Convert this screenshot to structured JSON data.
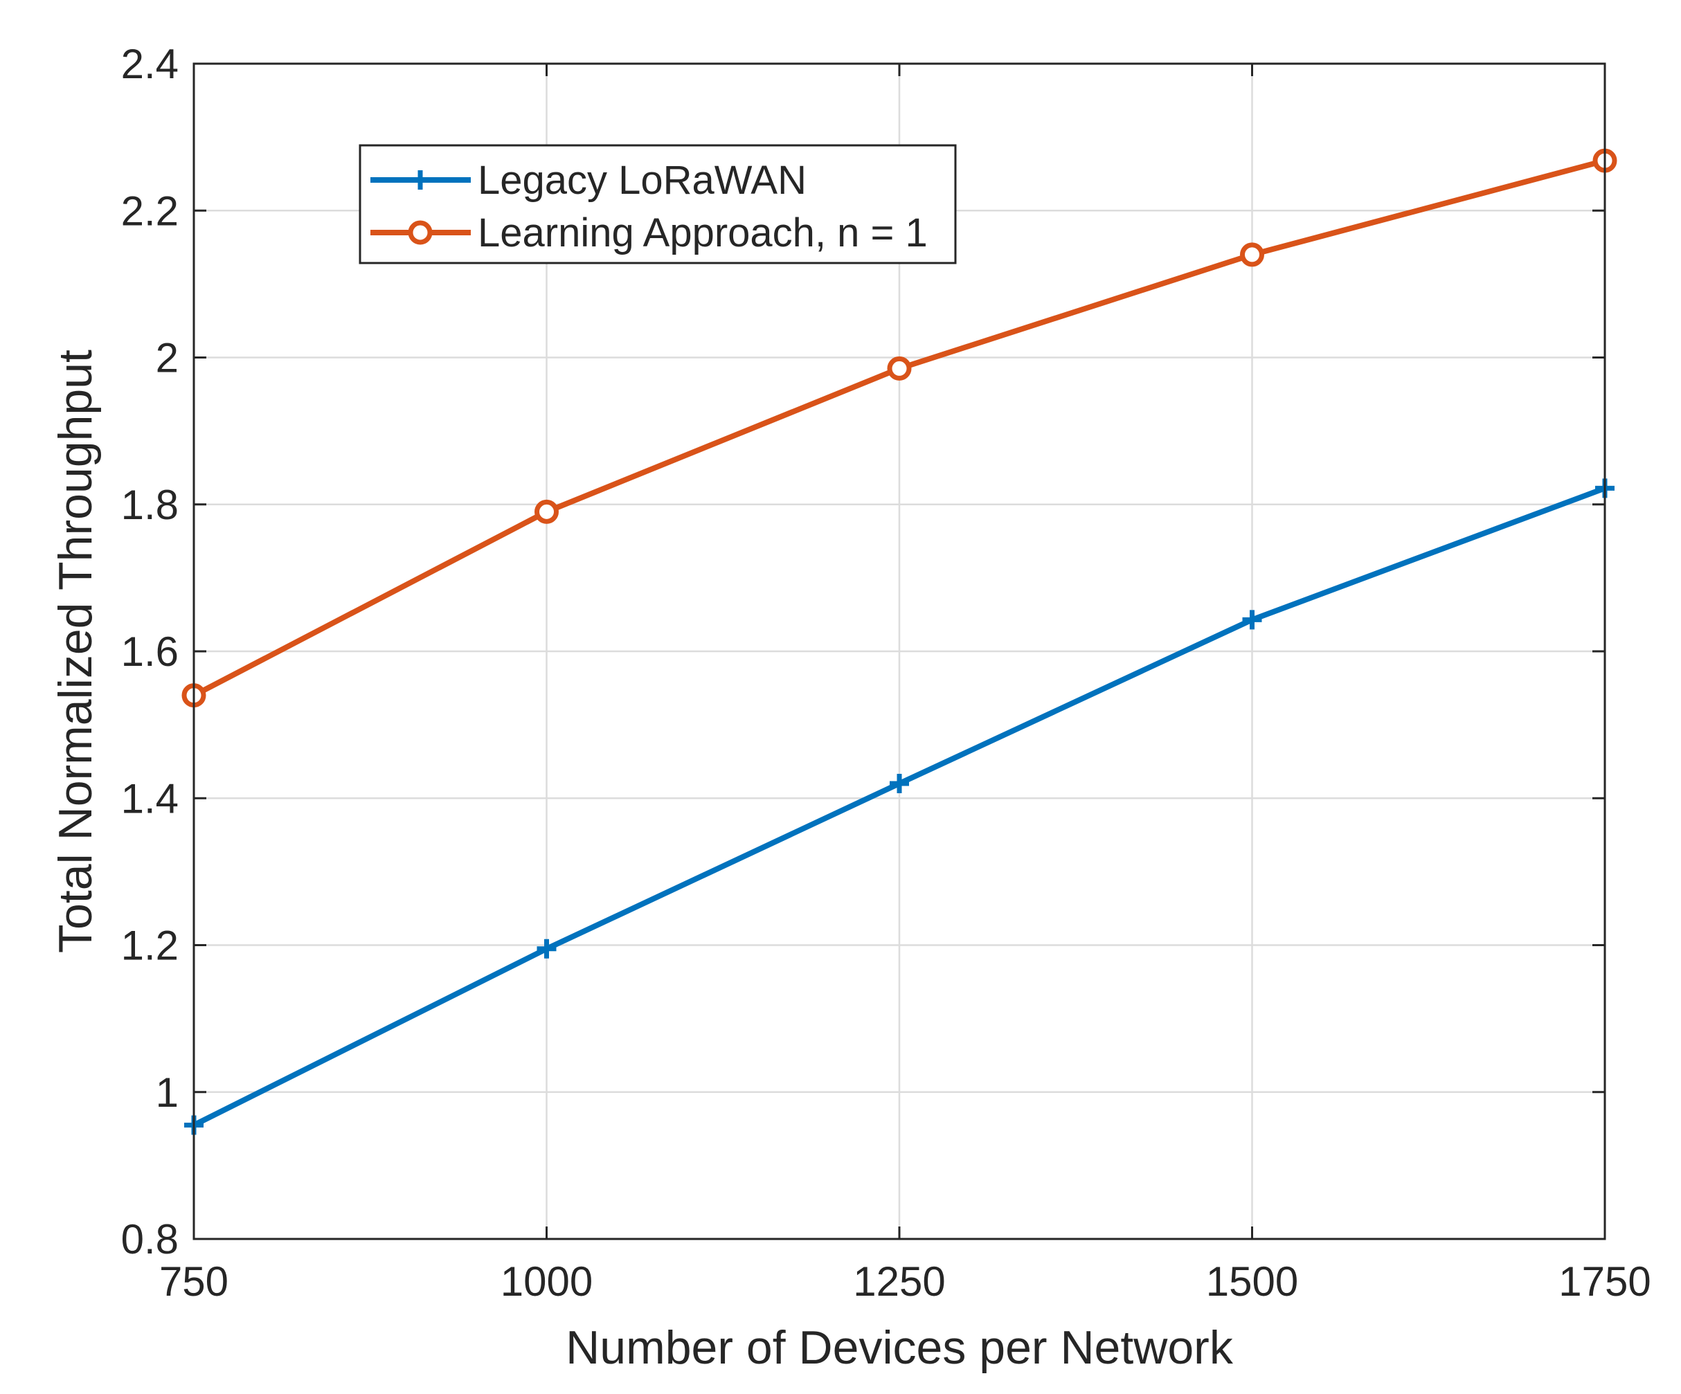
{
  "chart_data": {
    "type": "line",
    "title": "",
    "xlabel": "Number of Devices per Network",
    "ylabel": "Total Normalized Throughput",
    "x": [
      750,
      1000,
      1250,
      1500,
      1750
    ],
    "xlim": [
      750,
      1750
    ],
    "ylim": [
      0.8,
      2.4
    ],
    "xticks": [
      750,
      1000,
      1250,
      1500,
      1750
    ],
    "xtick_labels": [
      "750",
      "1000",
      "1250",
      "1500",
      "1750"
    ],
    "yticks": [
      0.8,
      1.0,
      1.2,
      1.4,
      1.6,
      1.8,
      2.0,
      2.2,
      2.4
    ],
    "ytick_labels": [
      "0.8",
      "1",
      "1.2",
      "1.4",
      "1.6",
      "1.8",
      "2",
      "2.2",
      "2.4"
    ],
    "grid": true,
    "legend_position": "top-left",
    "series": [
      {
        "name": "Legacy LoRaWAN",
        "color": "#0072BD",
        "marker": "plus",
        "values": [
          0.955,
          1.195,
          1.42,
          1.643,
          1.822
        ]
      },
      {
        "name": "Learning Approach, n = 1",
        "color": "#D95319",
        "marker": "circle",
        "values": [
          1.54,
          1.79,
          1.985,
          2.14,
          2.268
        ]
      }
    ]
  }
}
